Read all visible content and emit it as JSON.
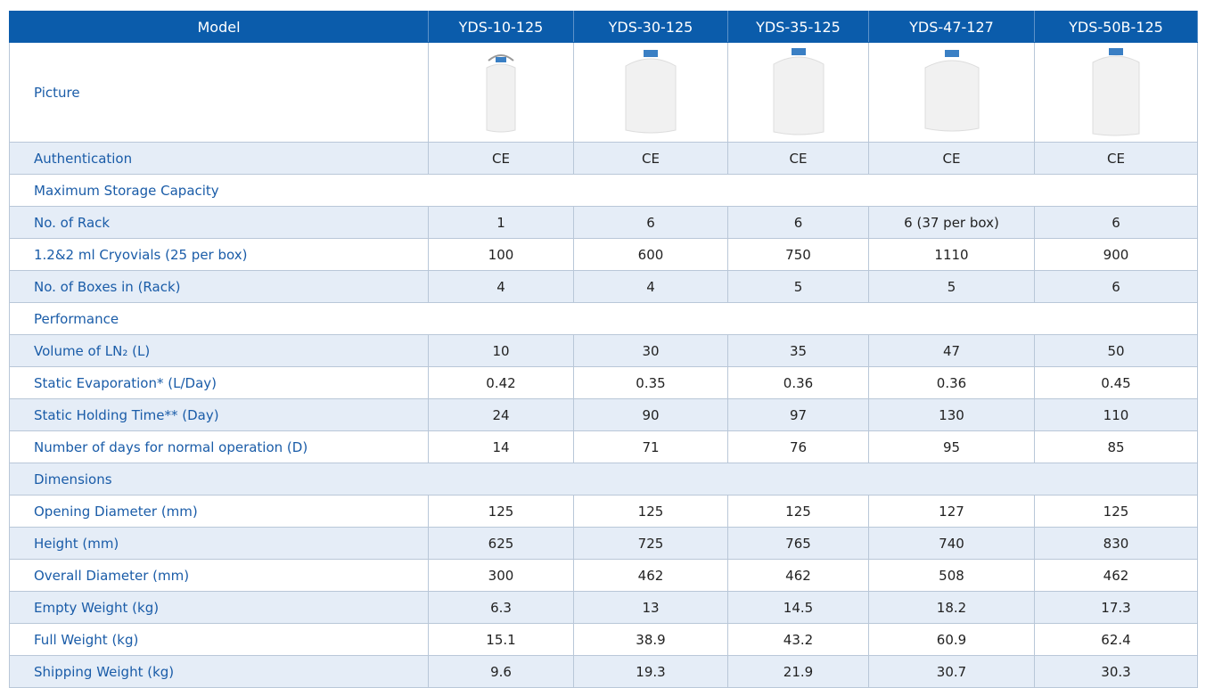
{
  "table": {
    "columns": [
      "Model",
      "YDS-10-125",
      "YDS-30-125",
      "YDS-35-125",
      "YDS-47-127",
      "YDS-50B-125"
    ],
    "picture_label": "Picture",
    "rows": [
      [
        "Authentication",
        "CE",
        "CE",
        "CE",
        "CE",
        "CE"
      ],
      [
        "Maximum Storage Capacity"
      ],
      [
        "No. of Rack",
        "1",
        "6",
        "6",
        "6 (37 per box)",
        "6"
      ],
      [
        "1.2&2 ml Cryovials (25 per box)",
        "100",
        "600",
        "750",
        "1110",
        "900"
      ],
      [
        "No. of Boxes in (Rack)",
        "4",
        "4",
        "5",
        "5",
        "6"
      ],
      [
        "Performance"
      ],
      [
        "Volume of LN₂ (L)",
        "10",
        "30",
        "35",
        "47",
        "50"
      ],
      [
        "Static Evaporation* (L/Day)",
        "0.42",
        "0.35",
        "0.36",
        "0.36",
        "0.45"
      ],
      [
        "Static Holding Time** (Day)",
        "24",
        "90",
        "97",
        "130",
        "110"
      ],
      [
        "Number of days for normal operation (D)",
        "14",
        "71",
        "76",
        "95",
        "85"
      ],
      [
        "Dimensions"
      ],
      [
        "Opening Diameter (mm)",
        "125",
        "125",
        "125",
        "127",
        "125"
      ],
      [
        "Height (mm)",
        "625",
        "725",
        "765",
        "740",
        "830"
      ],
      [
        "Overall Diameter (mm)",
        "300",
        "462",
        "462",
        "508",
        "462"
      ],
      [
        "Empty Weight (kg)",
        "6.3",
        "13",
        "14.5",
        "18.2",
        "17.3"
      ],
      [
        "Full Weight (kg)",
        "15.1",
        "38.9",
        "43.2",
        "60.9",
        "62.4"
      ],
      [
        "Shipping Weight (kg)",
        "9.6",
        "19.3",
        "21.9",
        "30.7",
        "30.3"
      ]
    ]
  }
}
